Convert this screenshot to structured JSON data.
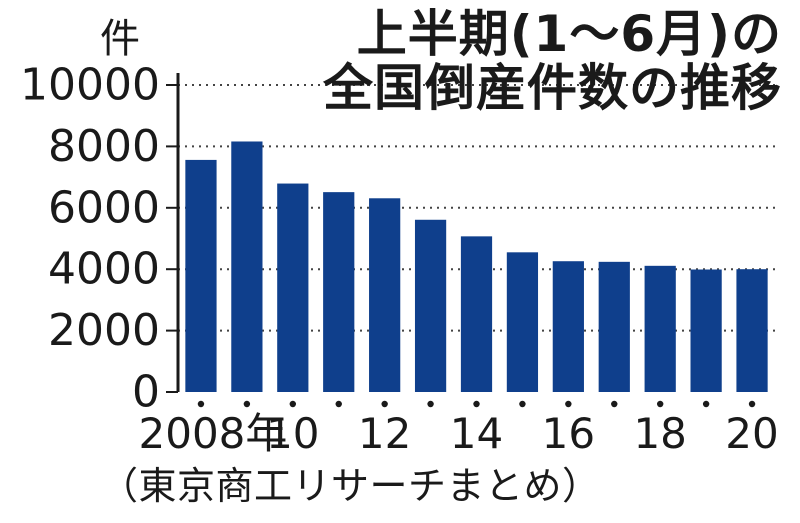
{
  "chart_data": {
    "type": "bar",
    "title_line1": "上半期(1～6月)の",
    "title_line2": "全国倒産件数の推移",
    "unit_label": "件",
    "source": "（東京商工リサーチまとめ）",
    "categories": [
      "2008",
      "2009",
      "2010",
      "2011",
      "2012",
      "2013",
      "2014",
      "2015",
      "2016",
      "2017",
      "2018",
      "2019",
      "2020"
    ],
    "values": [
      7560,
      8160,
      6790,
      6510,
      6310,
      5610,
      5070,
      4550,
      4260,
      4240,
      4110,
      3990,
      4000
    ],
    "x_tick_labels": [
      "2008年",
      "",
      "10",
      "",
      "12",
      "",
      "14",
      "",
      "16",
      "",
      "18",
      "",
      "20"
    ],
    "ylim": [
      0,
      10000
    ],
    "yticks": [
      0,
      2000,
      4000,
      6000,
      8000,
      10000
    ],
    "grid": "horizontal dotted",
    "bar_color": "#0f3f8c",
    "axis_color": "#1a1a1a",
    "grid_color": "#444444"
  }
}
